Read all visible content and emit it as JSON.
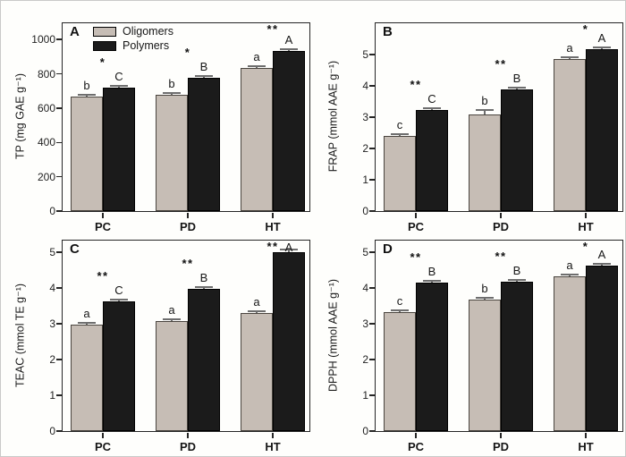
{
  "figure": {
    "background": "#fefefc",
    "border_color": "#c9c9c9",
    "axis_color": "#262626",
    "error_bar_color": "#6e6e6e",
    "bar_colors": {
      "oligomers": "#c6bdb5",
      "polymers": "#1b1b1b"
    },
    "categories": [
      "PC",
      "PD",
      "HT"
    ],
    "legend": {
      "position": "top-left-panel-A",
      "items": [
        {
          "label": "Oligomers",
          "color": "#c6bdb5"
        },
        {
          "label": "Polymers",
          "color": "#1b1b1b"
        }
      ]
    }
  },
  "chart_data": [
    {
      "type": "bar",
      "panel_label": "A",
      "title": "",
      "xlabel": "",
      "ylabel": "TP (mg GAE g⁻¹)",
      "categories": [
        "PC",
        "PD",
        "HT"
      ],
      "yticks": [
        0,
        200,
        400,
        600,
        800,
        1000
      ],
      "ylim": [
        0,
        1095
      ],
      "grid": false,
      "show_legend": true,
      "series": [
        {
          "name": "Oligomers",
          "color": "#c6bdb5",
          "values": [
            670,
            680,
            835
          ],
          "errors": [
            10,
            8,
            10
          ],
          "letters": [
            "b",
            "b",
            "a"
          ]
        },
        {
          "name": "Polymers",
          "color": "#1b1b1b",
          "values": [
            720,
            775,
            935
          ],
          "errors": [
            10,
            8,
            10
          ],
          "letters": [
            "C",
            "B",
            "A"
          ]
        }
      ],
      "significance": [
        "*",
        "*",
        "**"
      ]
    },
    {
      "type": "bar",
      "panel_label": "B",
      "title": "",
      "xlabel": "",
      "ylabel": "FRAP (mmol AAE g⁻¹)",
      "categories": [
        "PC",
        "PD",
        "HT"
      ],
      "yticks": [
        0,
        1,
        2,
        3,
        4,
        5
      ],
      "ylim": [
        0,
        6.0
      ],
      "grid": false,
      "show_legend": false,
      "series": [
        {
          "name": "Oligomers",
          "color": "#c6bdb5",
          "values": [
            2.4,
            3.1,
            4.87
          ],
          "errors": [
            0.03,
            0.13,
            0.04
          ],
          "letters": [
            "c",
            "b",
            "a"
          ]
        },
        {
          "name": "Polymers",
          "color": "#1b1b1b",
          "values": [
            3.22,
            3.88,
            5.17
          ],
          "errors": [
            0.04,
            0.03,
            0.06
          ],
          "letters": [
            "C",
            "B",
            "A"
          ]
        }
      ],
      "significance": [
        "**",
        "**",
        "*"
      ]
    },
    {
      "type": "bar",
      "panel_label": "C",
      "title": "",
      "xlabel": "",
      "ylabel": "TEAC (mmol TE g⁻¹)",
      "categories": [
        "PC",
        "PD",
        "HT"
      ],
      "yticks": [
        0,
        1,
        2,
        3,
        4,
        5
      ],
      "ylim": [
        0,
        5.33
      ],
      "grid": false,
      "show_legend": false,
      "series": [
        {
          "name": "Oligomers",
          "color": "#c6bdb5",
          "values": [
            2.97,
            3.07,
            3.3
          ],
          "errors": [
            0.03,
            0.04,
            0.03
          ],
          "letters": [
            "a",
            "a",
            "a"
          ]
        },
        {
          "name": "Polymers",
          "color": "#1b1b1b",
          "values": [
            3.63,
            3.97,
            5.0
          ],
          "errors": [
            0.04,
            0.04,
            0.07
          ],
          "letters": [
            "C",
            "B",
            "A"
          ]
        }
      ],
      "significance": [
        "**",
        "**",
        "**"
      ]
    },
    {
      "type": "bar",
      "panel_label": "D",
      "title": "",
      "xlabel": "",
      "ylabel": "DPPH (mmol AAE g⁻¹)",
      "categories": [
        "PC",
        "PD",
        "HT"
      ],
      "yticks": [
        0,
        1,
        2,
        3,
        4,
        5
      ],
      "ylim": [
        0,
        5.33
      ],
      "grid": false,
      "show_legend": false,
      "series": [
        {
          "name": "Oligomers",
          "color": "#c6bdb5",
          "values": [
            3.33,
            3.67,
            4.33
          ],
          "errors": [
            0.04,
            0.03,
            0.03
          ],
          "letters": [
            "c",
            "b",
            "a"
          ]
        },
        {
          "name": "Polymers",
          "color": "#1b1b1b",
          "values": [
            4.15,
            4.18,
            4.62
          ],
          "errors": [
            0.05,
            0.04,
            0.04
          ],
          "letters": [
            "B",
            "B",
            "A"
          ]
        }
      ],
      "significance": [
        "**",
        "**",
        "*"
      ]
    }
  ]
}
